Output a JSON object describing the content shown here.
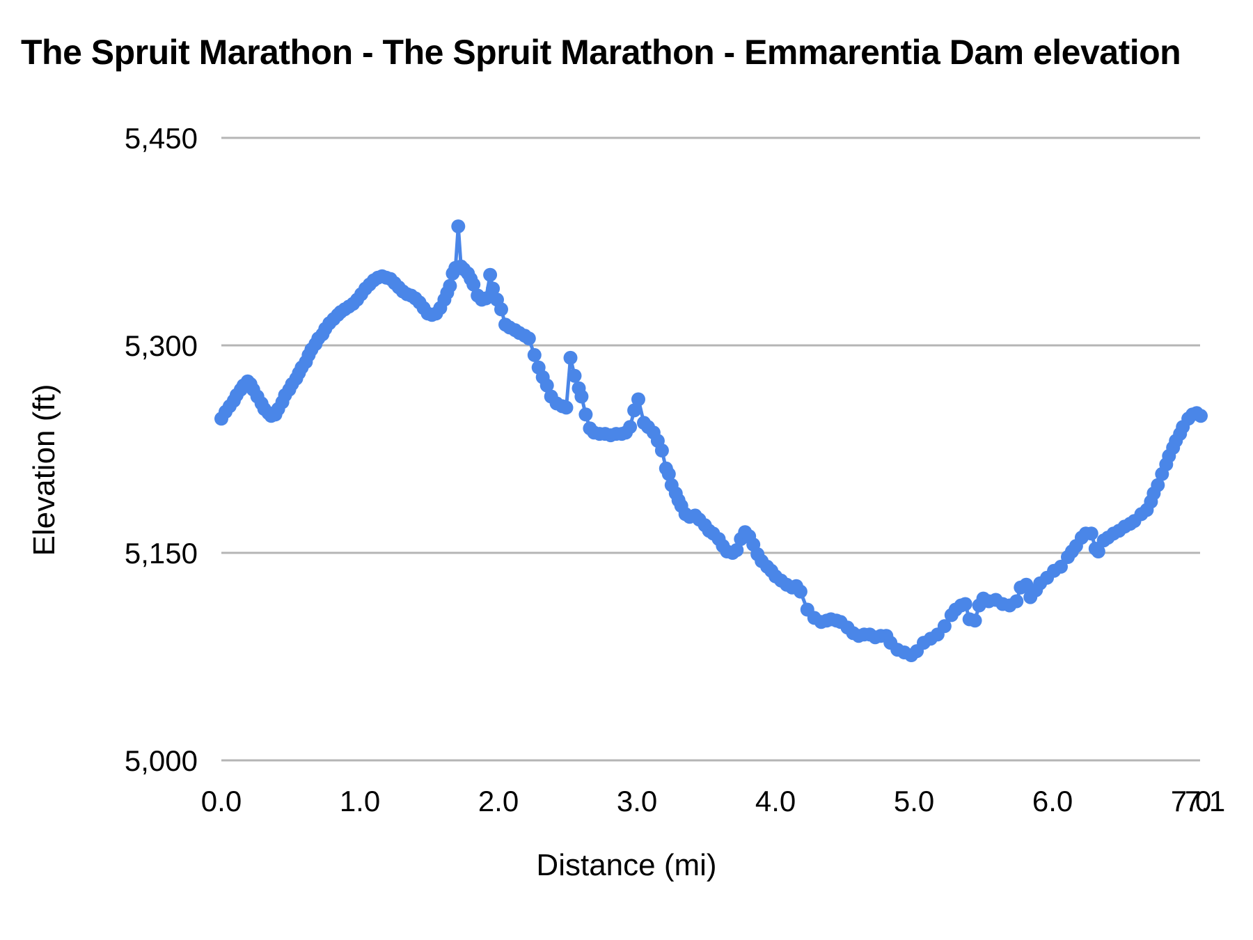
{
  "page": {
    "background_color": "#ffffff",
    "text_color": "#000000"
  },
  "chart_data": {
    "type": "line",
    "title": "The Spruit Marathon - The Spruit Marathon - Emmarentia Dam elevation",
    "xlabel": "Distance (mi)",
    "ylabel": "Elevation (ft)",
    "xlim": [
      0,
      7.1
    ],
    "ylim": [
      5000,
      5450
    ],
    "grid": true,
    "legend_position": "none",
    "gridline_color": "#b5b5b5",
    "x_ticks": [
      {
        "value": 0,
        "label": "0.0"
      },
      {
        "value": 1,
        "label": "1.0"
      },
      {
        "value": 2,
        "label": "2.0"
      },
      {
        "value": 3,
        "label": "3.0"
      },
      {
        "value": 4,
        "label": "4.0"
      },
      {
        "value": 5,
        "label": "5.0"
      },
      {
        "value": 6,
        "label": "6.0"
      },
      {
        "value": 7,
        "label": "7.0"
      },
      {
        "value": 7.1,
        "label": "7.1"
      }
    ],
    "y_ticks": [
      {
        "value": 5450,
        "label": "5,450"
      },
      {
        "value": 5300,
        "label": "5,300"
      },
      {
        "value": 5150,
        "label": "5,150"
      },
      {
        "value": 5000,
        "label": "5,000"
      }
    ],
    "series": [
      {
        "name": "Elevation",
        "color": "#4a86e8",
        "marker_radius": 10,
        "line_width": 5,
        "points": [
          [
            0.0,
            5247
          ],
          [
            0.03,
            5252
          ],
          [
            0.06,
            5256
          ],
          [
            0.09,
            5260
          ],
          [
            0.11,
            5264
          ],
          [
            0.14,
            5268
          ],
          [
            0.16,
            5271
          ],
          [
            0.19,
            5274
          ],
          [
            0.21,
            5272
          ],
          [
            0.23,
            5268
          ],
          [
            0.26,
            5263
          ],
          [
            0.29,
            5258
          ],
          [
            0.31,
            5254
          ],
          [
            0.34,
            5251
          ],
          [
            0.36,
            5249
          ],
          [
            0.39,
            5250
          ],
          [
            0.41,
            5254
          ],
          [
            0.44,
            5259
          ],
          [
            0.46,
            5264
          ],
          [
            0.49,
            5268
          ],
          [
            0.51,
            5272
          ],
          [
            0.54,
            5276
          ],
          [
            0.56,
            5280
          ],
          [
            0.58,
            5284
          ],
          [
            0.61,
            5288
          ],
          [
            0.63,
            5293
          ],
          [
            0.65,
            5297
          ],
          [
            0.68,
            5301
          ],
          [
            0.7,
            5305
          ],
          [
            0.73,
            5308
          ],
          [
            0.75,
            5312
          ],
          [
            0.78,
            5316
          ],
          [
            0.81,
            5319
          ],
          [
            0.84,
            5322
          ],
          [
            0.86,
            5324
          ],
          [
            0.89,
            5326
          ],
          [
            0.92,
            5328
          ],
          [
            0.95,
            5330
          ],
          [
            0.98,
            5333
          ],
          [
            1.01,
            5337
          ],
          [
            1.04,
            5341
          ],
          [
            1.07,
            5344
          ],
          [
            1.1,
            5347
          ],
          [
            1.13,
            5349
          ],
          [
            1.16,
            5350
          ],
          [
            1.19,
            5349
          ],
          [
            1.22,
            5348
          ],
          [
            1.25,
            5345
          ],
          [
            1.28,
            5342
          ],
          [
            1.31,
            5339
          ],
          [
            1.34,
            5337
          ],
          [
            1.37,
            5336
          ],
          [
            1.4,
            5334
          ],
          [
            1.43,
            5331
          ],
          [
            1.46,
            5327
          ],
          [
            1.49,
            5323
          ],
          [
            1.52,
            5322
          ],
          [
            1.55,
            5323
          ],
          [
            1.58,
            5327
          ],
          [
            1.61,
            5333
          ],
          [
            1.63,
            5338
          ],
          [
            1.65,
            5343
          ],
          [
            1.67,
            5352
          ],
          [
            1.69,
            5356
          ],
          [
            1.71,
            5386
          ],
          [
            1.73,
            5357
          ],
          [
            1.75,
            5355
          ],
          [
            1.78,
            5352
          ],
          [
            1.8,
            5348
          ],
          [
            1.82,
            5344
          ],
          [
            1.85,
            5336
          ],
          [
            1.88,
            5333
          ],
          [
            1.91,
            5334
          ],
          [
            1.94,
            5351
          ],
          [
            1.96,
            5341
          ],
          [
            1.99,
            5333
          ],
          [
            2.02,
            5326
          ],
          [
            2.05,
            5315
          ],
          [
            2.08,
            5313
          ],
          [
            2.12,
            5311
          ],
          [
            2.15,
            5309
          ],
          [
            2.19,
            5307
          ],
          [
            2.22,
            5305
          ],
          [
            2.26,
            5293
          ],
          [
            2.29,
            5284
          ],
          [
            2.32,
            5277
          ],
          [
            2.35,
            5271
          ],
          [
            2.38,
            5263
          ],
          [
            2.42,
            5258
          ],
          [
            2.46,
            5256
          ],
          [
            2.49,
            5255
          ],
          [
            2.52,
            5291
          ],
          [
            2.55,
            5278
          ],
          [
            2.58,
            5269
          ],
          [
            2.6,
            5263
          ],
          [
            2.63,
            5250
          ],
          [
            2.66,
            5240
          ],
          [
            2.69,
            5237
          ],
          [
            2.73,
            5236
          ],
          [
            2.77,
            5236
          ],
          [
            2.81,
            5235
          ],
          [
            2.85,
            5236
          ],
          [
            2.89,
            5236
          ],
          [
            2.92,
            5237
          ],
          [
            2.95,
            5241
          ],
          [
            2.98,
            5253
          ],
          [
            3.01,
            5261
          ],
          [
            3.05,
            5244
          ],
          [
            3.08,
            5241
          ],
          [
            3.12,
            5237
          ],
          [
            3.15,
            5231
          ],
          [
            3.18,
            5224
          ],
          [
            3.21,
            5211
          ],
          [
            3.23,
            5207
          ],
          [
            3.25,
            5199
          ],
          [
            3.28,
            5193
          ],
          [
            3.3,
            5188
          ],
          [
            3.32,
            5184
          ],
          [
            3.35,
            5178
          ],
          [
            3.38,
            5176
          ],
          [
            3.42,
            5177
          ],
          [
            3.45,
            5174
          ],
          [
            3.49,
            5170
          ],
          [
            3.52,
            5166
          ],
          [
            3.55,
            5164
          ],
          [
            3.59,
            5160
          ],
          [
            3.62,
            5155
          ],
          [
            3.65,
            5151
          ],
          [
            3.69,
            5150
          ],
          [
            3.72,
            5152
          ],
          [
            3.75,
            5160
          ],
          [
            3.78,
            5165
          ],
          [
            3.81,
            5162
          ],
          [
            3.84,
            5156
          ],
          [
            3.87,
            5149
          ],
          [
            3.9,
            5144
          ],
          [
            3.94,
            5140
          ],
          [
            3.97,
            5137
          ],
          [
            4.0,
            5133
          ],
          [
            4.04,
            5130
          ],
          [
            4.08,
            5127
          ],
          [
            4.12,
            5125
          ],
          [
            4.15,
            5126
          ],
          [
            4.18,
            5122
          ],
          [
            4.23,
            5109
          ],
          [
            4.28,
            5103
          ],
          [
            4.33,
            5100
          ],
          [
            4.37,
            5101
          ],
          [
            4.4,
            5102
          ],
          [
            4.44,
            5101
          ],
          [
            4.47,
            5100
          ],
          [
            4.52,
            5096
          ],
          [
            4.56,
            5092
          ],
          [
            4.6,
            5090
          ],
          [
            4.64,
            5091
          ],
          [
            4.68,
            5091
          ],
          [
            4.72,
            5089
          ],
          [
            4.76,
            5090
          ],
          [
            4.8,
            5090
          ],
          [
            4.83,
            5085
          ],
          [
            4.88,
            5080
          ],
          [
            4.93,
            5078
          ],
          [
            4.98,
            5076
          ],
          [
            5.02,
            5079
          ],
          [
            5.07,
            5085
          ],
          [
            5.12,
            5088
          ],
          [
            5.17,
            5091
          ],
          [
            5.22,
            5097
          ],
          [
            5.27,
            5105
          ],
          [
            5.3,
            5109
          ],
          [
            5.34,
            5112
          ],
          [
            5.37,
            5113
          ],
          [
            5.4,
            5102
          ],
          [
            5.44,
            5101
          ],
          [
            5.47,
            5112
          ],
          [
            5.5,
            5117
          ],
          [
            5.54,
            5115
          ],
          [
            5.59,
            5116
          ],
          [
            5.64,
            5113
          ],
          [
            5.69,
            5112
          ],
          [
            5.74,
            5115
          ],
          [
            5.77,
            5125
          ],
          [
            5.81,
            5127
          ],
          [
            5.84,
            5118
          ],
          [
            5.88,
            5123
          ],
          [
            5.91,
            5128
          ],
          [
            5.96,
            5132
          ],
          [
            6.01,
            5137
          ],
          [
            6.06,
            5140
          ],
          [
            6.11,
            5147
          ],
          [
            6.14,
            5151
          ],
          [
            6.17,
            5155
          ],
          [
            6.21,
            5161
          ],
          [
            6.24,
            5164
          ],
          [
            6.28,
            5164
          ],
          [
            6.31,
            5153
          ],
          [
            6.33,
            5151
          ],
          [
            6.37,
            5159
          ],
          [
            6.4,
            5161
          ],
          [
            6.44,
            5164
          ],
          [
            6.48,
            5166
          ],
          [
            6.52,
            5169
          ],
          [
            6.56,
            5171
          ],
          [
            6.59,
            5173
          ],
          [
            6.64,
            5178
          ],
          [
            6.68,
            5181
          ],
          [
            6.71,
            5187
          ],
          [
            6.73,
            5193
          ],
          [
            6.76,
            5199
          ],
          [
            6.79,
            5207
          ],
          [
            6.82,
            5214
          ],
          [
            6.84,
            5220
          ],
          [
            6.87,
            5226
          ],
          [
            6.89,
            5231
          ],
          [
            6.92,
            5236
          ],
          [
            6.94,
            5241
          ],
          [
            6.98,
            5247
          ],
          [
            7.01,
            5250
          ],
          [
            7.04,
            5251
          ],
          [
            7.07,
            5249
          ]
        ]
      }
    ]
  }
}
